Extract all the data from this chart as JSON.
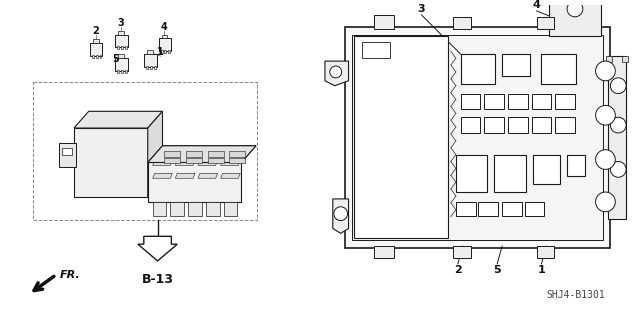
{
  "bg_color": "#ffffff",
  "line_color": "#1a1a1a",
  "diagram_code": "SHJ4-B1301",
  "b13_label": "B-13",
  "fr_label": "FR.",
  "lc": "#1a1a1a",
  "lw": 0.8,
  "fc_light": "#f5f5f5",
  "fc_white": "#ffffff",
  "fc_gray": "#e0e0e0"
}
